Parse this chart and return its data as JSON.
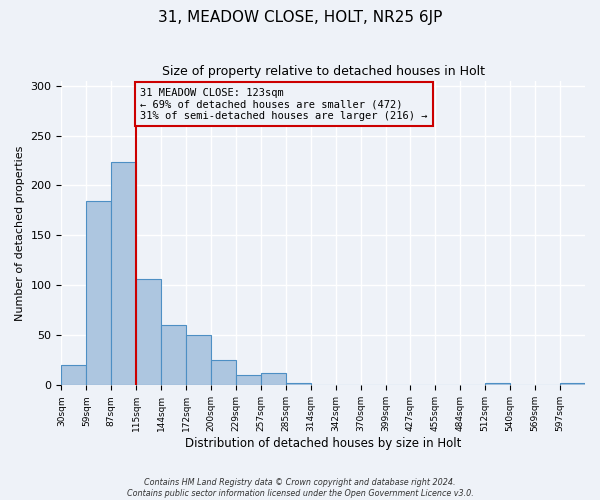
{
  "title1": "31, MEADOW CLOSE, HOLT, NR25 6JP",
  "title2": "Size of property relative to detached houses in Holt",
  "xlabel": "Distribution of detached houses by size in Holt",
  "ylabel": "Number of detached properties",
  "bar_values": [
    20,
    184,
    224,
    106,
    60,
    50,
    25,
    10,
    12,
    2,
    0,
    0,
    0,
    0,
    0,
    0,
    0,
    2,
    0,
    0,
    2
  ],
  "bin_labels": [
    "30sqm",
    "59sqm",
    "87sqm",
    "115sqm",
    "144sqm",
    "172sqm",
    "200sqm",
    "229sqm",
    "257sqm",
    "285sqm",
    "314sqm",
    "342sqm",
    "370sqm",
    "399sqm",
    "427sqm",
    "455sqm",
    "484sqm",
    "512sqm",
    "540sqm",
    "569sqm",
    "597sqm"
  ],
  "bar_color": "#adc6e0",
  "bar_edge_color": "#4d8fc4",
  "bg_color": "#eef2f8",
  "grid_color": "#ffffff",
  "vline_x": 3,
  "vline_color": "#cc0000",
  "annotation_text": "31 MEADOW CLOSE: 123sqm\n← 69% of detached houses are smaller (472)\n31% of semi-detached houses are larger (216) →",
  "annotation_box_color": "#cc0000",
  "ylim": [
    0,
    305
  ],
  "yticks": [
    0,
    50,
    100,
    150,
    200,
    250,
    300
  ],
  "footer1": "Contains HM Land Registry data © Crown copyright and database right 2024.",
  "footer2": "Contains public sector information licensed under the Open Government Licence v3.0."
}
